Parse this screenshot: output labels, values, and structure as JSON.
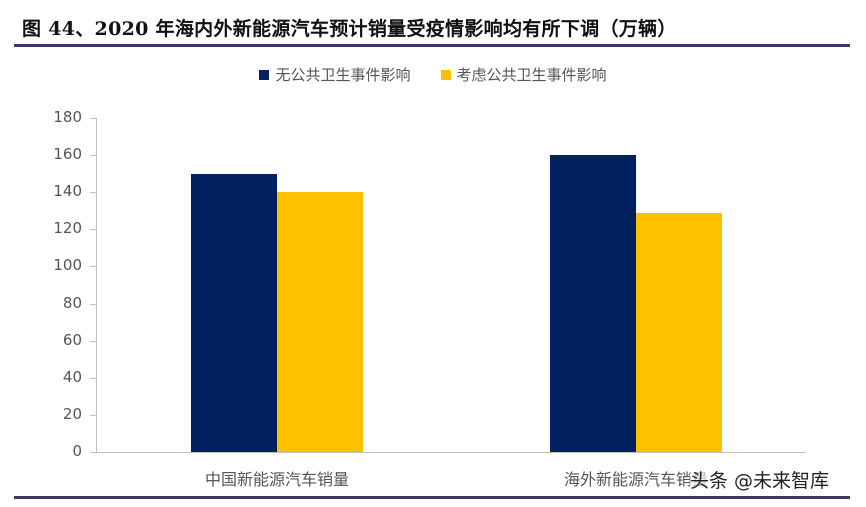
{
  "title": "图 44、2020 年海内外新能源汽车预计销量受疫情影响均有所下调（万辆）",
  "watermark": "头条 @未来智库",
  "colors": {
    "series1": "#002060",
    "series2": "#FFC000",
    "rule": "#3a3a6a",
    "axis": "#bfbfbf"
  },
  "chart_data": {
    "type": "bar",
    "title": "2020 年海内外新能源汽车预计销量受疫情影响均有所下调（万辆）",
    "xlabel": "",
    "ylabel": "",
    "ylim": [
      0,
      180
    ],
    "yticks": [
      0,
      20,
      40,
      60,
      80,
      100,
      120,
      140,
      160,
      180
    ],
    "grid": false,
    "legend_position": "top",
    "categories": [
      "中国新能源汽车销量",
      "海外新能源汽车销量"
    ],
    "series": [
      {
        "name": "无公共卫生事件影响",
        "color": "#002060",
        "values": [
          150,
          160
        ]
      },
      {
        "name": "考虑公共卫生事件影响",
        "color": "#FFC000",
        "values": [
          140,
          129
        ]
      }
    ]
  },
  "yticks_labels": [
    "0",
    "20",
    "40",
    "60",
    "80",
    "100",
    "120",
    "140",
    "160",
    "180"
  ]
}
